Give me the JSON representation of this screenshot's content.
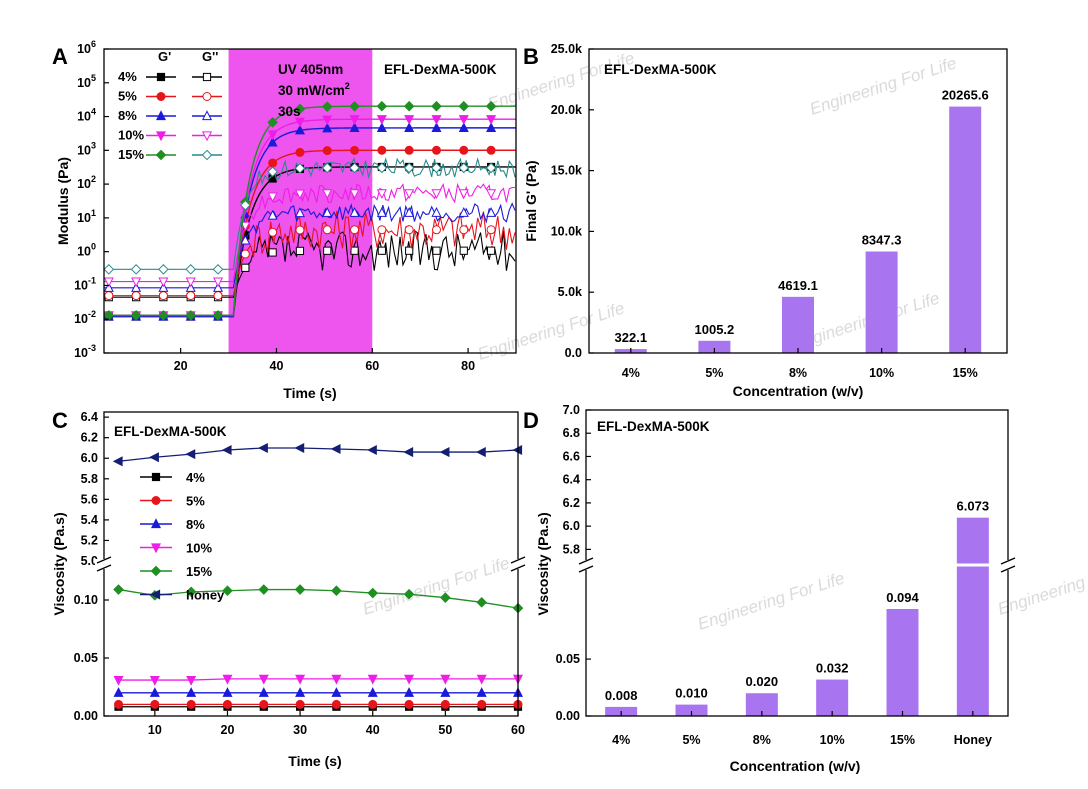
{
  "colors": {
    "c4": "#000000",
    "c5": "#e6141b",
    "c8": "#1a1ad9",
    "c10": "#ee1ee8",
    "c15": "#1f8f22",
    "chonley": "#141f73",
    "c15g2": "#2a8a8a",
    "bar": "#a874f0",
    "uv": "#ee55ee"
  },
  "watermark": "Engineering For Life",
  "panels": {
    "A": {
      "letter": "A",
      "inset": "EFL-DexMA-500K",
      "uv_lines": [
        "UV 405nm",
        "30 mW/cm",
        "30s"
      ],
      "uv_superscript": "2"
    },
    "B": {
      "letter": "B"
    },
    "C": {
      "letter": "C"
    },
    "D": {
      "letter": "D"
    }
  },
  "chart_data": [
    {
      "panel": "A",
      "type": "line",
      "title": "EFL-DexMA-500K",
      "xlabel": "Time (s)",
      "ylabel": "Modulus (Pa)",
      "xlim": [
        4,
        90
      ],
      "xticks": [
        "20",
        "40",
        "60",
        "80"
      ],
      "ylim_log10": [
        -3,
        6
      ],
      "yticks": [
        "10-3",
        "10-2",
        "10-1",
        "100",
        "101",
        "102",
        "103",
        "104",
        "105",
        "106"
      ],
      "annotation": {
        "text": [
          "UV 405nm",
          "30 mW/cm2",
          "30s"
        ],
        "x_range": [
          30,
          60
        ]
      },
      "legend_headers": [
        "G'",
        "G''"
      ],
      "series": [
        {
          "name": "4%",
          "gp_final": 322.1,
          "gp_initial": 0.012,
          "gpp_initial": 0.045,
          "gpp_final": 0.6
        },
        {
          "name": "5%",
          "gp_final": 1005.2,
          "gp_initial": 0.013,
          "gpp_initial": 0.05,
          "gpp_final": 2.5
        },
        {
          "name": "8%",
          "gp_final": 4619.1,
          "gp_initial": 0.012,
          "gpp_initial": 0.085,
          "gpp_final": 8
        },
        {
          "name": "10%",
          "gp_final": 8347.3,
          "gp_initial": 0.013,
          "gpp_initial": 0.13,
          "gpp_final": 30
        },
        {
          "name": "15%",
          "gp_final": 20265.6,
          "gp_initial": 0.013,
          "gpp_initial": 0.3,
          "gpp_final": 170
        }
      ]
    },
    {
      "panel": "B",
      "type": "bar",
      "title": "EFL-DexMA-500K",
      "xlabel": "Concentration (w/v)",
      "ylabel": "Final G' (Pa)",
      "categories": [
        "4%",
        "5%",
        "8%",
        "10%",
        "15%"
      ],
      "values": [
        322.1,
        1005.2,
        4619.1,
        8347.3,
        20265.6
      ],
      "labels": [
        "322.1",
        "1005.2",
        "4619.1",
        "8347.3",
        "20265.6"
      ],
      "ylim": [
        0,
        25000
      ],
      "yticks": [
        "0.0",
        "5.0k",
        "10.0k",
        "15.0k",
        "20.0k",
        "25.0k"
      ]
    },
    {
      "panel": "C",
      "type": "line",
      "title": "EFL-DexMA-500K",
      "xlabel": "Time (s)",
      "ylabel": "Viscosity (Pa.s)",
      "x": [
        5,
        10,
        15,
        20,
        25,
        30,
        35,
        40,
        45,
        50,
        55,
        60
      ],
      "xticks": [
        "10",
        "20",
        "30",
        "40",
        "50",
        "60"
      ],
      "ylim_lower": [
        0,
        0.125
      ],
      "ylim_upper": [
        5.0,
        6.45
      ],
      "yticks_lower": [
        "0.00",
        "0.05",
        "0.10"
      ],
      "yticks_upper": [
        "5.0",
        "5.2",
        "5.4",
        "5.6",
        "5.8",
        "6.0",
        "6.2",
        "6.4"
      ],
      "series": [
        {
          "name": "4%",
          "values": [
            0.008,
            0.008,
            0.008,
            0.008,
            0.008,
            0.008,
            0.008,
            0.008,
            0.008,
            0.008,
            0.008,
            0.008
          ]
        },
        {
          "name": "5%",
          "values": [
            0.01,
            0.01,
            0.01,
            0.01,
            0.01,
            0.01,
            0.01,
            0.01,
            0.01,
            0.01,
            0.01,
            0.01
          ]
        },
        {
          "name": "8%",
          "values": [
            0.02,
            0.02,
            0.02,
            0.02,
            0.02,
            0.02,
            0.02,
            0.02,
            0.02,
            0.02,
            0.02,
            0.02
          ]
        },
        {
          "name": "10%",
          "values": [
            0.031,
            0.031,
            0.031,
            0.032,
            0.032,
            0.032,
            0.032,
            0.032,
            0.032,
            0.032,
            0.032,
            0.032
          ]
        },
        {
          "name": "15%",
          "values": [
            0.109,
            0.104,
            0.107,
            0.108,
            0.109,
            0.109,
            0.108,
            0.106,
            0.105,
            0.102,
            0.098,
            0.093
          ]
        },
        {
          "name": "honey",
          "values": [
            5.97,
            6.01,
            6.04,
            6.08,
            6.1,
            6.1,
            6.09,
            6.08,
            6.06,
            6.06,
            6.06,
            6.08
          ]
        }
      ]
    },
    {
      "panel": "D",
      "type": "bar",
      "title": "EFL-DexMA-500K",
      "xlabel": "Concentration (w/v)",
      "ylabel": "Viscosity (Pa.s)",
      "categories": [
        "4%",
        "5%",
        "8%",
        "10%",
        "15%",
        "Honey"
      ],
      "values": [
        0.008,
        0.01,
        0.02,
        0.032,
        0.094,
        6.073
      ],
      "labels": [
        "0.008",
        "0.010",
        "0.020",
        "0.032",
        "0.094",
        "6.073"
      ],
      "ylim_lower": [
        0,
        0.13
      ],
      "ylim_upper": [
        5.7,
        7.0
      ],
      "yticks_lower": [
        "0.00",
        "0.05"
      ],
      "yticks_upper": [
        "5.8",
        "6.0",
        "6.2",
        "6.4",
        "6.6",
        "6.8",
        "7.0"
      ]
    }
  ]
}
